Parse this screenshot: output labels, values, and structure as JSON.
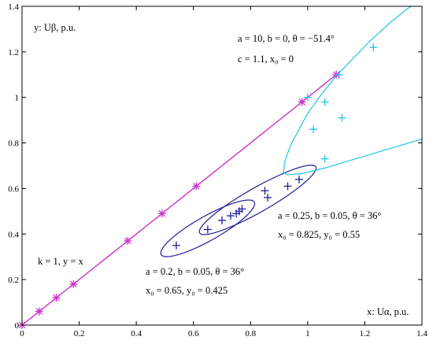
{
  "chart_data": {
    "type": "scatter",
    "xlim": [
      0,
      1.4
    ],
    "ylim": [
      0,
      1.4
    ],
    "xticks": [
      "0",
      "0.2",
      "0.4",
      "0.6",
      "0.8",
      "1",
      "1.2",
      "1.4"
    ],
    "yticks": [
      "0",
      "0.2",
      "0.4",
      "0.6",
      "0.8",
      "1",
      "1.2",
      "1.4"
    ],
    "xlabel": "x: Uα, p.u.",
    "ylabel": "y: Uβ, p.u.",
    "grid": false,
    "colors": {
      "line": "#cc33cc",
      "ellipse": "#1f1f99",
      "hyperbola": "#22c4e8",
      "axis": "#000000"
    },
    "annotations": {
      "line": "k = 1, y = x",
      "e1_line1": "a = 0.2, b = 0.05, θ = 36°",
      "e1_line2": "x₀ = 0.65, y₀ = 0.425",
      "e2_line1": "a = 0.25, b = 0.05, θ = 36°",
      "e2_line2": "x₀ = 0.825, y₀ = 0.55",
      "h_line1": "a = 10, b = 0, θ = −51.4°",
      "h_line2": "c = 1.1, x₀ = 0"
    },
    "line_fit": {
      "k": 1,
      "x_range": [
        0,
        1.1
      ]
    },
    "ellipses": [
      {
        "a": 0.2,
        "b": 0.05,
        "theta_deg": 36,
        "x0": 0.65,
        "y0": 0.425
      },
      {
        "a": 0.25,
        "b": 0.05,
        "theta_deg": 36,
        "x0": 0.825,
        "y0": 0.55
      }
    ],
    "series": [
      {
        "marker": "star",
        "color": "#cc33cc",
        "points": [
          [
            0,
            0
          ],
          [
            0.06,
            0.06
          ],
          [
            0.12,
            0.12
          ],
          [
            0.18,
            0.18
          ],
          [
            0.37,
            0.37
          ],
          [
            0.49,
            0.49
          ],
          [
            0.61,
            0.61
          ],
          [
            0.98,
            0.98
          ],
          [
            1.1,
            1.1
          ]
        ]
      },
      {
        "marker": "plus",
        "color": "#1f1f99",
        "points": [
          [
            0.54,
            0.35
          ],
          [
            0.65,
            0.42
          ],
          [
            0.7,
            0.46
          ],
          [
            0.73,
            0.48
          ],
          [
            0.75,
            0.49
          ],
          [
            0.76,
            0.5
          ],
          [
            0.77,
            0.51
          ],
          [
            0.85,
            0.59
          ],
          [
            0.86,
            0.56
          ],
          [
            0.93,
            0.61
          ],
          [
            0.97,
            0.64
          ]
        ]
      },
      {
        "marker": "plus",
        "color": "#22c4e8",
        "points": [
          [
            1.0,
            1.0
          ],
          [
            1.02,
            0.86
          ],
          [
            1.06,
            0.73
          ],
          [
            1.06,
            0.98
          ],
          [
            1.11,
            1.1
          ],
          [
            1.12,
            0.91
          ],
          [
            1.23,
            1.22
          ]
        ]
      }
    ]
  }
}
